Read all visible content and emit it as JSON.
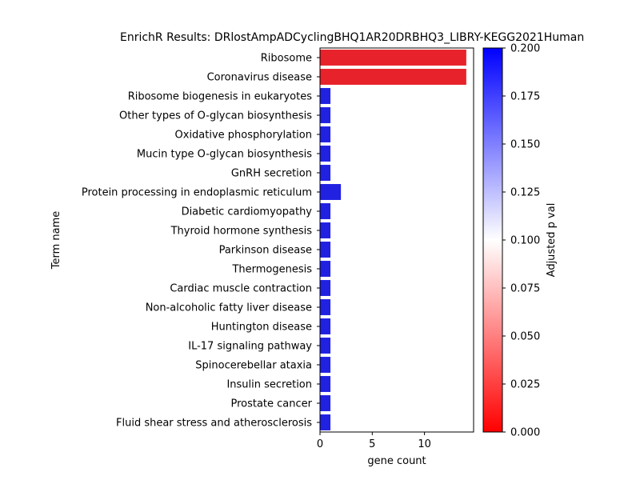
{
  "chart_data": {
    "type": "bar",
    "orientation": "horizontal",
    "title": "EnrichR Results: DRlostAmpADCyclingBHQ1AR20DRBHQ3_LIBRY-KEGG2021Human",
    "xlabel": "gene count",
    "ylabel": "Term name",
    "xlim": [
      0,
      14.7
    ],
    "xticks": [
      "0",
      "5",
      "10"
    ],
    "categories": [
      "Ribosome",
      "Coronavirus disease",
      "Ribosome biogenesis in eukaryotes",
      "Other types of O-glycan biosynthesis",
      "Oxidative phosphorylation",
      "Mucin type O-glycan biosynthesis",
      "GnRH secretion",
      "Protein processing in endoplasmic reticulum",
      "Diabetic cardiomyopathy",
      "Thyroid hormone synthesis",
      "Parkinson disease",
      "Thermogenesis",
      "Cardiac muscle contraction",
      "Non-alcoholic fatty liver disease",
      "Huntington disease",
      "IL-17 signaling pathway",
      "Spinocerebellar ataxia",
      "Insulin secretion",
      "Prostate cancer",
      "Fluid shear stress and atherosclerosis"
    ],
    "values": [
      14,
      14,
      1,
      1,
      1,
      1,
      1,
      2,
      1,
      1,
      1,
      1,
      1,
      1,
      1,
      1,
      1,
      1,
      1,
      1
    ],
    "bar_colors": [
      "#e8222a",
      "#e8222a",
      "#2121e2",
      "#2121e2",
      "#2121e2",
      "#2121e2",
      "#2121e2",
      "#2121e2",
      "#2121e2",
      "#2121e2",
      "#2121e2",
      "#2121e2",
      "#2121e2",
      "#2121e2",
      "#2121e2",
      "#2121e2",
      "#2121e2",
      "#2121e2",
      "#2121e2",
      "#2121e2"
    ],
    "colorbar": {
      "label": "Adjusted p val",
      "range": [
        0,
        0.2
      ],
      "ticks": [
        "0.000",
        "0.025",
        "0.050",
        "0.075",
        "0.100",
        "0.125",
        "0.150",
        "0.175",
        "0.200"
      ],
      "colormap": [
        "#ff0000",
        "#ffffff",
        "#0000ff"
      ]
    }
  }
}
